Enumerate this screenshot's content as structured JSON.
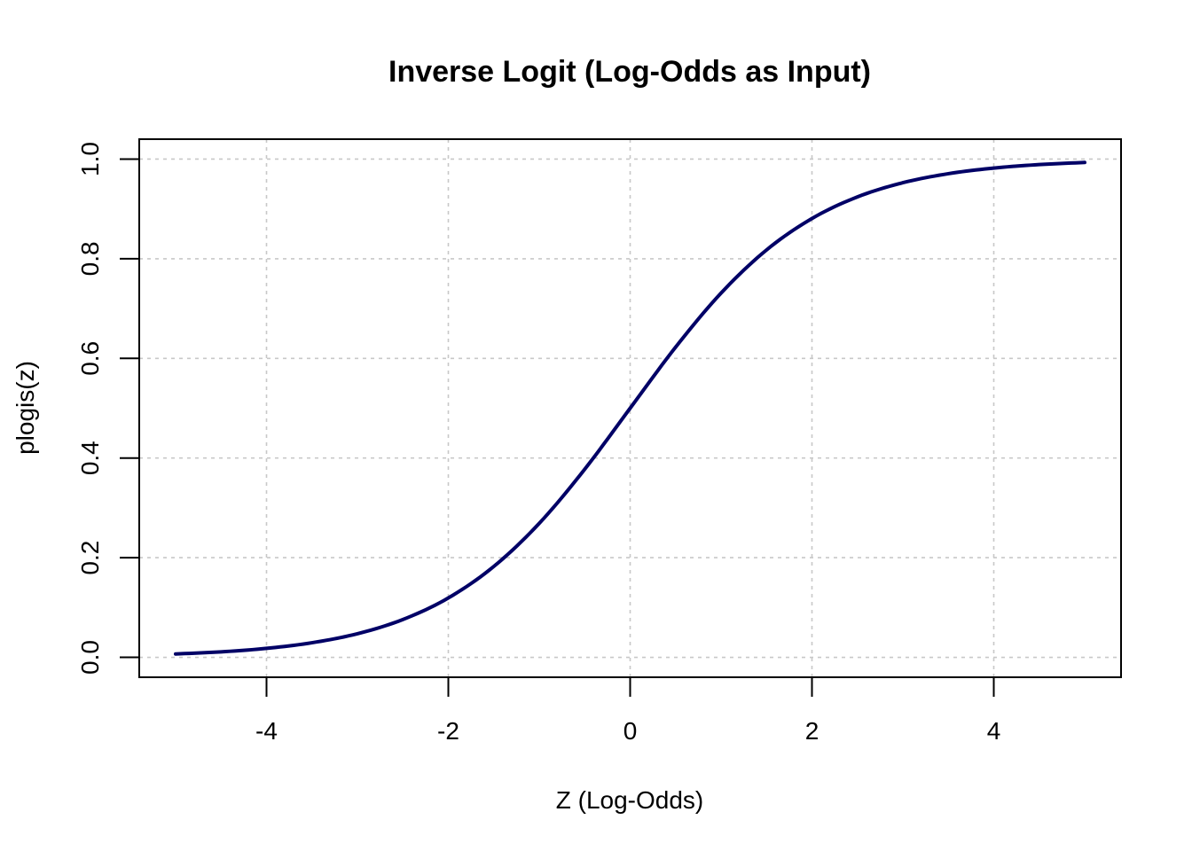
{
  "chart_data": {
    "type": "line",
    "title": "Inverse Logit (Log-Odds as Input)",
    "xlabel": "Z (Log-Odds)",
    "ylabel": "plogis(z)",
    "xlim": [
      -5.4,
      5.4
    ],
    "ylim": [
      -0.04,
      1.04
    ],
    "x_ticks": [
      -4,
      -2,
      0,
      2,
      4
    ],
    "x_tick_labels": [
      "-4",
      "-2",
      "0",
      "2",
      "4"
    ],
    "y_ticks": [
      0.0,
      0.2,
      0.4,
      0.6,
      0.8,
      1.0
    ],
    "y_tick_labels": [
      "0.0",
      "0.2",
      "0.4",
      "0.6",
      "0.8",
      "1.0"
    ],
    "grid": true,
    "series": [
      {
        "color": "#000066",
        "x": [
          -5,
          -4.5,
          -4,
          -3.5,
          -3,
          -2.5,
          -2,
          -1.5,
          -1,
          -0.5,
          0,
          0.5,
          1,
          1.5,
          2,
          2.5,
          3,
          3.5,
          4,
          4.5,
          5
        ],
        "y": [
          0.0067,
          0.011,
          0.018,
          0.0293,
          0.0474,
          0.0759,
          0.1192,
          0.1824,
          0.2689,
          0.3775,
          0.5,
          0.6225,
          0.7311,
          0.8176,
          0.8808,
          0.9241,
          0.9526,
          0.9707,
          0.982,
          0.989,
          0.9933
        ]
      }
    ]
  }
}
